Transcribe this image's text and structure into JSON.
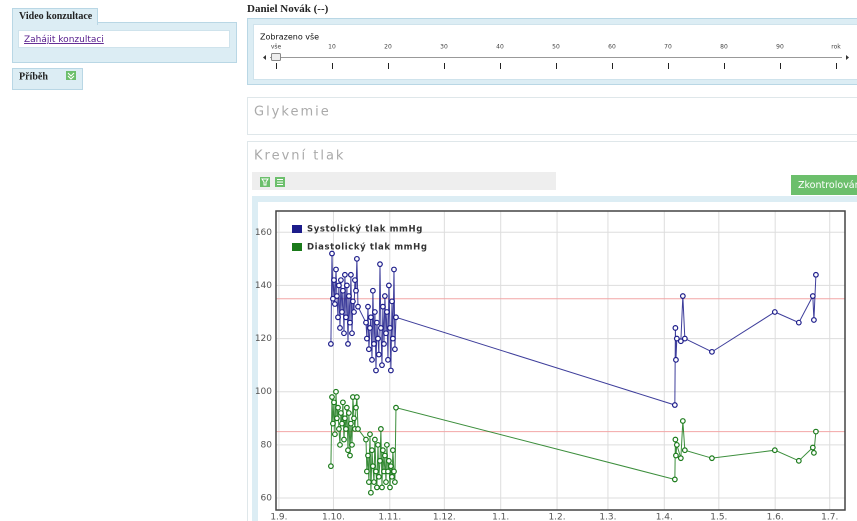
{
  "sidebar": {
    "video": {
      "title": "Video konzultace",
      "link": "Zahájit konzultaci"
    },
    "story": {
      "title": "Příběh"
    }
  },
  "patient": "Daniel Novák (--)",
  "timeline": {
    "label": "Zobrazeno vše",
    "ticks": [
      "vše",
      "10",
      "20",
      "30",
      "40",
      "50",
      "60",
      "70",
      "80",
      "90",
      "rok"
    ]
  },
  "sections": [
    "Glykemie",
    "Krevní tlak"
  ],
  "button": "Zkontrolováno",
  "chart_data": {
    "type": "line",
    "x": [
      28.6,
      29.2,
      29.7,
      30.3,
      30.8,
      31.4,
      31.9,
      32.5,
      33.0,
      33.6,
      34.1,
      34.7,
      35.2,
      35.8,
      36.3,
      36.9,
      37.4,
      38.0,
      38.5,
      39.1,
      39.6,
      40.2,
      40.7,
      41.3,
      41.8,
      42.4,
      42.9,
      43.5,
      47.9,
      48.4,
      49.0,
      49.5,
      50.1,
      50.6,
      51.2,
      51.7,
      52.3,
      52.8,
      53.4,
      53.9,
      54.5,
      55.0,
      55.6,
      56.1,
      56.7,
      57.2,
      57.8,
      58.3,
      58.9,
      59.4,
      60.0,
      60.5,
      61.1,
      61.6,
      62.2,
      62.7,
      63.3,
      63.8,
      64.4,
      217.8,
      218.1,
      218.4,
      218.9,
      221.1,
      222.2,
      223.3,
      238.2,
      272.8,
      286.0,
      293.7,
      294.3,
      295.4
    ],
    "series": [
      {
        "name": "Systolický tlak mmHg",
        "color": "#1c1c8a",
        "values": [
          118,
          152,
          135,
          142,
          133,
          146,
          136,
          128,
          140,
          124,
          142,
          130,
          138,
          122,
          144,
          128,
          140,
          118,
          136,
          126,
          144,
          122,
          134,
          130,
          142,
          138,
          150,
          132,
          126,
          120,
          132,
          116,
          124,
          128,
          112,
          138,
          118,
          130,
          108,
          126,
          120,
          114,
          148,
          124,
          110,
          132,
          118,
          136,
          122,
          130,
          112,
          140,
          124,
          108,
          134,
          120,
          146,
          116,
          128,
          95,
          124,
          112,
          120,
          119,
          136,
          120,
          115,
          130,
          126,
          136,
          127,
          144
        ]
      },
      {
        "name": "Diastolický tlak mmHg",
        "color": "#1a7a1a",
        "values": [
          72,
          98,
          88,
          96,
          84,
          100,
          90,
          94,
          86,
          80,
          92,
          88,
          96,
          82,
          90,
          86,
          94,
          78,
          92,
          76,
          88,
          80,
          98,
          90,
          86,
          94,
          98,
          86,
          82,
          70,
          76,
          66,
          84,
          62,
          78,
          72,
          66,
          82,
          70,
          64,
          80,
          68,
          74,
          86,
          64,
          78,
          70,
          76,
          66,
          80,
          70,
          74,
          64,
          72,
          68,
          78,
          70,
          66,
          94,
          67,
          82,
          76,
          80,
          75,
          89,
          78,
          75,
          78,
          74,
          79,
          77,
          85
        ]
      }
    ],
    "xlim": [
      -1.6,
      311.4
    ],
    "xticks": [
      {
        "value": 0,
        "label": "1.9."
      },
      {
        "value": 30,
        "label": "1.10."
      },
      {
        "value": 61,
        "label": "1.11."
      },
      {
        "value": 91,
        "label": "1.12."
      },
      {
        "value": 122,
        "label": "1.1."
      },
      {
        "value": 153,
        "label": "1.2."
      },
      {
        "value": 181,
        "label": "1.3."
      },
      {
        "value": 212,
        "label": "1.4."
      },
      {
        "value": 242,
        "label": "1.5."
      },
      {
        "value": 273,
        "label": "1.6."
      },
      {
        "value": 303,
        "label": "1.7."
      }
    ],
    "ylim": [
      55.5,
      168
    ],
    "yticks": [
      60,
      80,
      100,
      120,
      140,
      160
    ],
    "reference_lines": [
      {
        "value": 135,
        "color": "#f2a6a6"
      },
      {
        "value": 85,
        "color": "#f2a6a6"
      }
    ],
    "grid": true,
    "legend": "top-left"
  }
}
